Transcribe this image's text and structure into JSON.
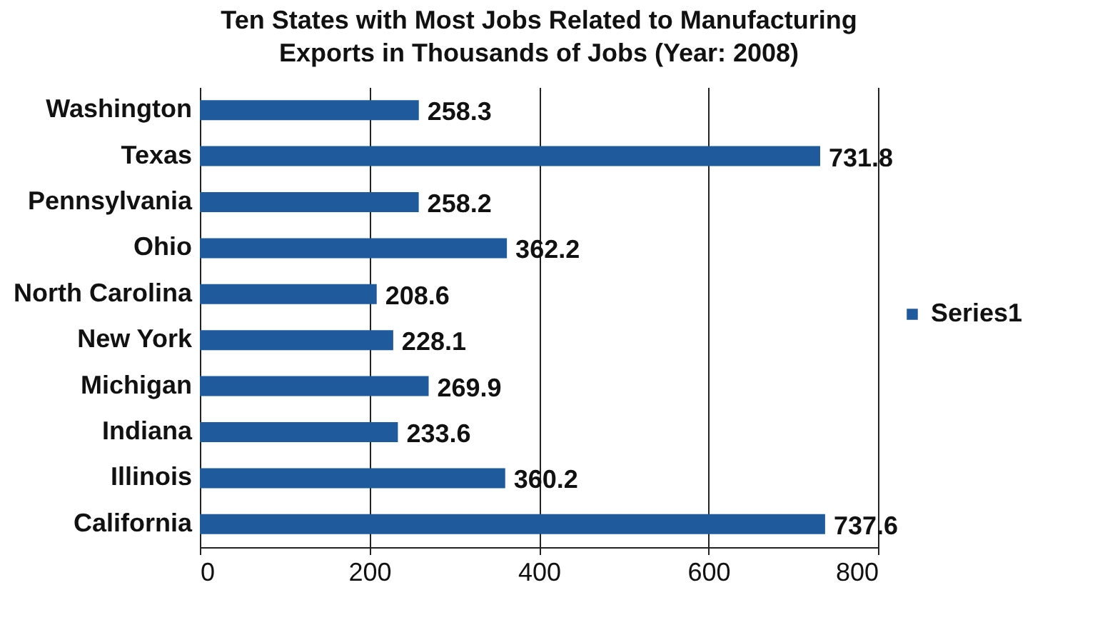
{
  "chart_data": {
    "type": "bar",
    "orientation": "horizontal",
    "title": "Ten States with Most Jobs Related to Manufacturing Exports in Thousands of Jobs (Year: 2008)",
    "categories": [
      "Washington",
      "Texas",
      "Pennsylvania",
      "Ohio",
      "North Carolina",
      "New York",
      "Michigan",
      "Indiana",
      "Illinois",
      "California"
    ],
    "series": [
      {
        "name": "Series1",
        "color": "#1f5a9c",
        "values": [
          258.3,
          731.8,
          258.2,
          362.2,
          208.6,
          228.1,
          269.9,
          233.6,
          360.2,
          737.6
        ]
      }
    ],
    "xlim": [
      0,
      800
    ],
    "xticks": [
      0,
      200,
      400,
      600,
      800
    ],
    "grid": "x",
    "legend": "right",
    "data_labels": true
  }
}
